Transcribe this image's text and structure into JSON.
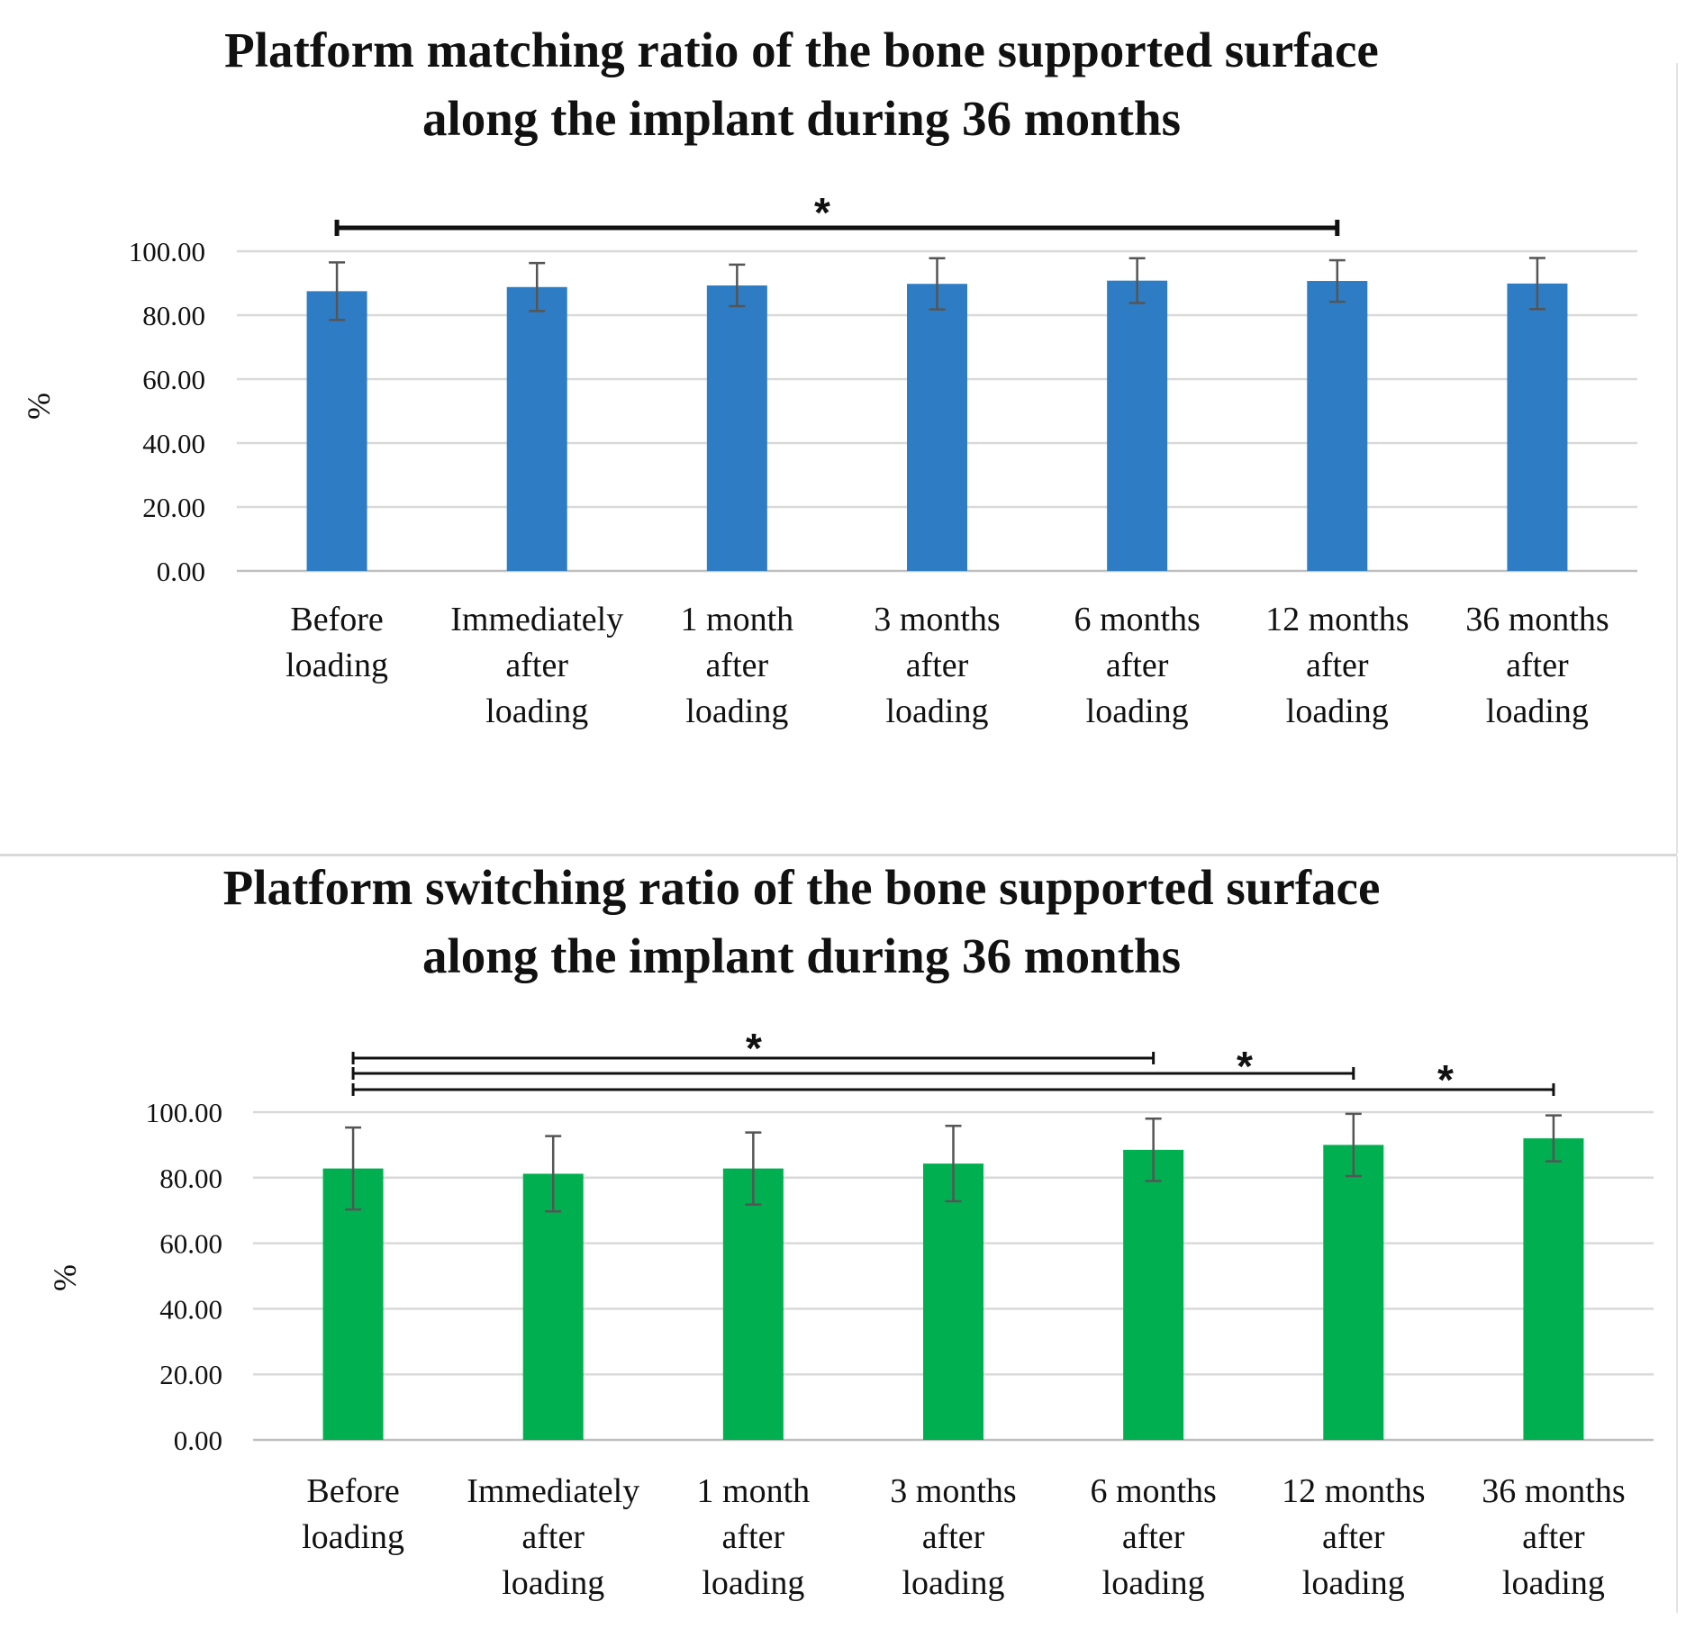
{
  "chart_data": [
    {
      "type": "bar",
      "title_lines": [
        "Platform matching ratio of the bone supported surface",
        "along the implant during 36 months"
      ],
      "ylabel": "%",
      "ylim": [
        0,
        100
      ],
      "ytick_values": [
        0,
        20,
        40,
        60,
        80,
        100
      ],
      "ytick_labels": [
        "0.00",
        "20.00",
        "40.00",
        "60.00",
        "80.00",
        "100.00"
      ],
      "categories": [
        [
          "Before",
          "loading"
        ],
        [
          "Immediately",
          "after",
          "loading"
        ],
        [
          "1 month",
          "after",
          "loading"
        ],
        [
          "3 months",
          "after",
          "loading"
        ],
        [
          "6 months",
          "after",
          "loading"
        ],
        [
          "12 months",
          "after",
          "loading"
        ],
        [
          "36 months",
          "after",
          "loading"
        ]
      ],
      "values": [
        87.5,
        88.8,
        89.3,
        89.8,
        90.8,
        90.7,
        89.9
      ],
      "errors": [
        9.0,
        7.5,
        6.5,
        8.0,
        7.0,
        6.5,
        8.0
      ],
      "color": "#2e7dc4",
      "significance": [
        {
          "from": 0,
          "to": 5,
          "label": "*"
        }
      ]
    },
    {
      "type": "bar",
      "title_lines": [
        "Platform switching ratio of the bone supported surface",
        "along the implant during 36 months"
      ],
      "ylabel": "%",
      "ylim": [
        0,
        100
      ],
      "ytick_values": [
        0,
        20,
        40,
        60,
        80,
        100
      ],
      "ytick_labels": [
        "0.00",
        "20.00",
        "40.00",
        "60.00",
        "80.00",
        "100.00"
      ],
      "categories": [
        [
          "Before",
          "loading"
        ],
        [
          "Immediately",
          "after",
          "loading"
        ],
        [
          "1 month",
          "after",
          "loading"
        ],
        [
          "3 months",
          "after",
          "loading"
        ],
        [
          "6 months",
          "after",
          "loading"
        ],
        [
          "12 months",
          "after",
          "loading"
        ],
        [
          "36 months",
          "after",
          "loading"
        ]
      ],
      "values": [
        82.8,
        81.2,
        82.8,
        84.3,
        88.5,
        90.0,
        92.0
      ],
      "errors": [
        12.5,
        11.5,
        11.0,
        11.5,
        9.5,
        9.5,
        7.0
      ],
      "color": "#00b050",
      "significance": [
        {
          "from": 0,
          "to": 4,
          "label": "*"
        },
        {
          "from": 0,
          "to": 5,
          "label": "*"
        },
        {
          "from": 0,
          "to": 6,
          "label": "*"
        }
      ]
    }
  ]
}
